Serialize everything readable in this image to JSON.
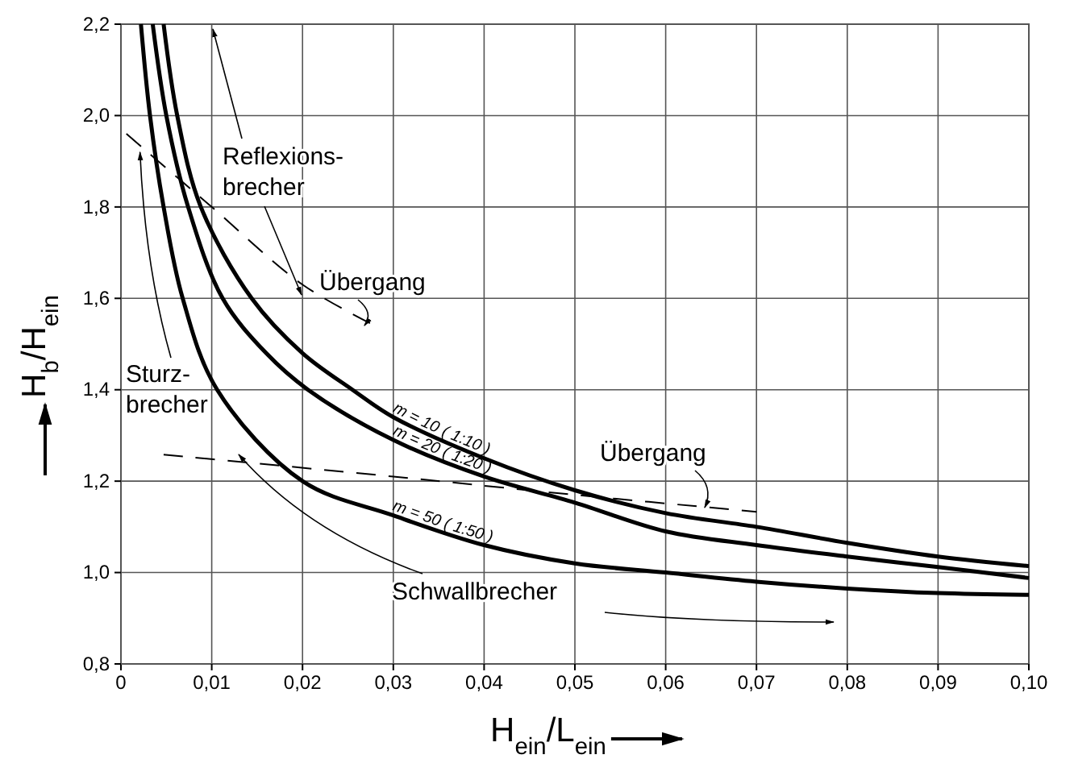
{
  "chart_data": {
    "type": "line",
    "xlabel": "H$_{ein}$/L$_{ein}$",
    "ylabel": "H$_{b}$/H$_{ein}$",
    "xlim": [
      0,
      0.1
    ],
    "ylim": [
      0.8,
      2.2
    ],
    "xticks": [
      0,
      {
        "value": 0.01,
        "label": "0,01"
      },
      {
        "value": 0.02,
        "label": "0,02"
      },
      {
        "value": 0.03,
        "label": "0,03"
      },
      {
        "value": 0.04,
        "label": "0,04"
      },
      {
        "value": 0.05,
        "label": "0,05"
      },
      {
        "value": 0.06,
        "label": "0,06"
      },
      {
        "value": 0.07,
        "label": "0,07"
      },
      {
        "value": 0.08,
        "label": "0,08"
      },
      {
        "value": 0.09,
        "label": "0,09"
      },
      {
        "value": 0.1,
        "label": "0,10"
      }
    ],
    "yticks": [
      {
        "value": 0.8,
        "label": "0,8"
      },
      {
        "value": 1.0,
        "label": "1,0"
      },
      {
        "value": 1.2,
        "label": "1,2"
      },
      {
        "value": 1.4,
        "label": "1,4"
      },
      {
        "value": 1.6,
        "label": "1,6"
      },
      {
        "value": 1.8,
        "label": "1,8"
      },
      {
        "value": 2.0,
        "label": "2,0"
      },
      {
        "value": 2.2,
        "label": "2,2"
      }
    ],
    "grid": true,
    "marker": "none",
    "series": [
      {
        "name": "m = 10 ( 1:10 )",
        "color": "#000000",
        "line_style": "solid",
        "x": [
          0.0047,
          0.0062,
          0.0088,
          0.0144,
          0.02,
          0.0255,
          0.03,
          0.04,
          0.05,
          0.06,
          0.07,
          0.08,
          0.09,
          0.1
        ],
        "values": [
          2.2,
          2.0,
          1.8,
          1.6,
          1.48,
          1.4,
          1.34,
          1.25,
          1.18,
          1.13,
          1.1,
          1.065,
          1.035,
          1.014
        ]
      },
      {
        "name": "m = 20 ( 1:20 )",
        "color": "#000000",
        "line_style": "solid",
        "x": [
          0.0035,
          0.005,
          0.0074,
          0.0112,
          0.016,
          0.0206,
          0.03,
          0.04,
          0.05,
          0.06,
          0.07,
          0.08,
          0.09,
          0.1
        ],
        "values": [
          2.2,
          2.0,
          1.8,
          1.6,
          1.48,
          1.4,
          1.29,
          1.21,
          1.153,
          1.09,
          1.06,
          1.035,
          1.012,
          0.988
        ]
      },
      {
        "name": "m = 50 ( 1:50 )",
        "color": "#000000",
        "line_style": "solid",
        "x": [
          0.0022,
          0.0032,
          0.0047,
          0.0068,
          0.0106,
          0.02,
          0.03,
          0.04,
          0.05,
          0.06,
          0.07,
          0.08,
          0.09,
          0.1
        ],
        "values": [
          2.2,
          2.0,
          1.8,
          1.6,
          1.4,
          1.2,
          1.125,
          1.06,
          1.02,
          1.0,
          0.98,
          0.965,
          0.955,
          0.951
        ]
      },
      {
        "color": "#000000",
        "line_style": "dashed",
        "x": [
          0.0006,
          0.01,
          0.02,
          0.028
        ],
        "values": [
          1.96,
          1.8,
          1.63,
          1.54
        ]
      },
      {
        "color": "#000000",
        "line_style": "dashed",
        "x": [
          0.0047,
          0.03,
          0.05,
          0.07
        ],
        "values": [
          1.258,
          1.21,
          1.17,
          1.133
        ]
      }
    ],
    "annotations": [
      "Reflexions-\nbrecher",
      "Übergang",
      {
        "text": "Sturz-\nbrecher",
        "x": 0.0021,
        "y": 1.92
      },
      "Übergang",
      "Schwallbrecher"
    ]
  }
}
